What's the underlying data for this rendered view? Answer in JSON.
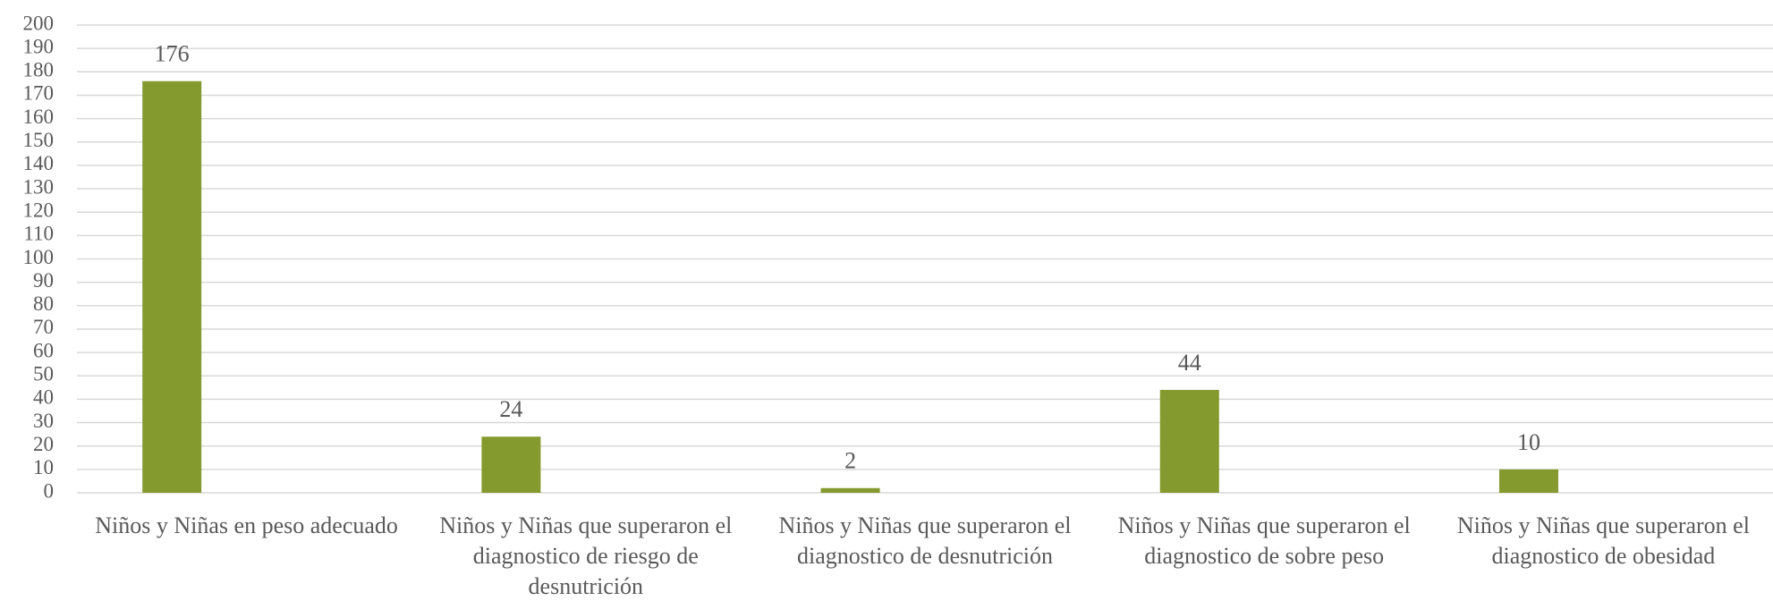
{
  "chart_data": {
    "type": "bar",
    "categories": [
      "Niños y Niñas en peso adecuado",
      "Niños y Niñas que superaron el diagnostico de riesgo de desnutrición",
      "Niños y Niñas que superaron el diagnostico de  desnutrición",
      "Niños y Niñas que superaron el diagnostico de sobre peso",
      "Niños y Niñas que superaron el diagnostico de obesidad"
    ],
    "values": [
      176,
      24,
      2,
      44,
      10
    ],
    "color": "#84992e",
    "ylim": [
      0,
      200
    ],
    "yticks": [
      0,
      10,
      20,
      30,
      40,
      50,
      60,
      70,
      80,
      90,
      100,
      110,
      120,
      130,
      140,
      150,
      160,
      170,
      180,
      190,
      200
    ],
    "grid": true
  }
}
